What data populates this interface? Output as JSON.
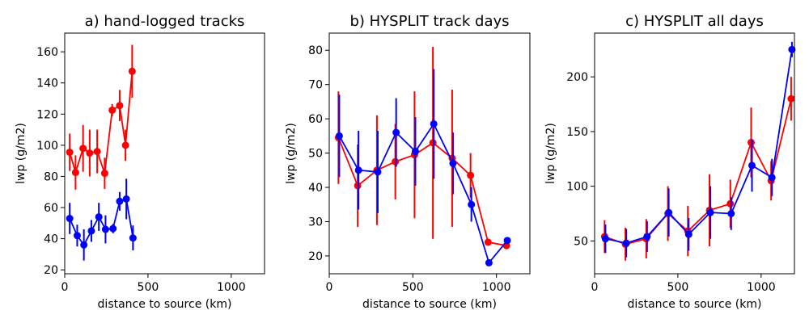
{
  "chart_data": [
    {
      "type": "line",
      "title": "a) hand-logged tracks",
      "xlabel": "distance to source (km)",
      "ylabel": "lwp (g/m2)",
      "xlim": [
        0,
        1200
      ],
      "ylim": [
        17.5,
        172
      ],
      "xticks": [
        0,
        500,
        1000
      ],
      "yticks": [
        20,
        40,
        60,
        80,
        100,
        120,
        140,
        160
      ],
      "grid": false,
      "series": [
        {
          "name": "red",
          "color": "#ff0000",
          "x": [
            30,
            65,
            110,
            150,
            195,
            240,
            285,
            330,
            365,
            405
          ],
          "y": [
            95.5,
            82.5,
            98,
            95,
            96,
            82,
            122.5,
            125.5,
            100,
            147.5
          ],
          "err": [
            12,
            11,
            15,
            15,
            14,
            10,
            4,
            10,
            10,
            17
          ]
        },
        {
          "name": "blue",
          "color": "#0000ff",
          "x": [
            30,
            75,
            115,
            160,
            205,
            245,
            290,
            330,
            370,
            410
          ],
          "y": [
            53,
            42,
            36,
            45,
            54,
            46,
            46.5,
            64,
            65.5,
            40.5
          ],
          "err": [
            10,
            7,
            10,
            7,
            9,
            9,
            3,
            6,
            13,
            8
          ]
        }
      ]
    },
    {
      "type": "line",
      "title": "b) HYSPLIT track days",
      "xlabel": "distance to source (km)",
      "ylabel": "lwp (g/m2)",
      "xlim": [
        0,
        1200
      ],
      "ylim": [
        14.8,
        85
      ],
      "xticks": [
        0,
        500,
        1000
      ],
      "yticks": [
        20,
        30,
        40,
        50,
        60,
        70,
        80
      ],
      "grid": false,
      "series": [
        {
          "name": "red",
          "color": "#ff0000",
          "x": [
            55,
            170,
            285,
            395,
            510,
            620,
            735,
            845,
            950,
            1060
          ],
          "y": [
            54.5,
            40.5,
            45,
            47.5,
            49.5,
            53,
            48.5,
            43.5,
            24,
            23
          ],
          "err": [
            13.5,
            12,
            16,
            11,
            18.5,
            28,
            20,
            6.5,
            0,
            0
          ]
        },
        {
          "name": "blue",
          "color": "#0000ff",
          "x": [
            60,
            175,
            290,
            400,
            515,
            625,
            740,
            850,
            955,
            1065
          ],
          "y": [
            55,
            45,
            44.5,
            56,
            50.5,
            58.5,
            47,
            35,
            18,
            24.5
          ],
          "err": [
            12,
            11.5,
            12,
            10,
            10,
            16,
            9,
            5,
            0,
            0
          ]
        }
      ]
    },
    {
      "type": "line",
      "title": "c) HYSPLIT all days",
      "xlabel": "distance to source (km)",
      "ylabel": "lwp (g/m2)",
      "xlim": [
        0,
        1200
      ],
      "ylim": [
        20,
        240
      ],
      "xticks": [
        0,
        500,
        1000
      ],
      "yticks": [
        50,
        100,
        150,
        200
      ],
      "grid": false,
      "series": [
        {
          "name": "red",
          "color": "#ff0000",
          "x": [
            60,
            185,
            310,
            440,
            560,
            690,
            815,
            940,
            1060,
            1180
          ],
          "y": [
            54,
            47,
            52,
            75,
            59,
            78,
            84,
            140,
            105,
            180
          ],
          "err": [
            15,
            15,
            18,
            25,
            23,
            33,
            22,
            32,
            18,
            20
          ]
        },
        {
          "name": "blue",
          "color": "#0000ff",
          "x": [
            65,
            190,
            315,
            445,
            565,
            695,
            820,
            945,
            1065,
            1185
          ],
          "y": [
            52,
            48,
            54,
            76,
            56,
            76,
            75,
            119,
            108,
            225
          ],
          "err": [
            13,
            13,
            14,
            22,
            15,
            24,
            15,
            24,
            17,
            7
          ]
        }
      ]
    }
  ]
}
